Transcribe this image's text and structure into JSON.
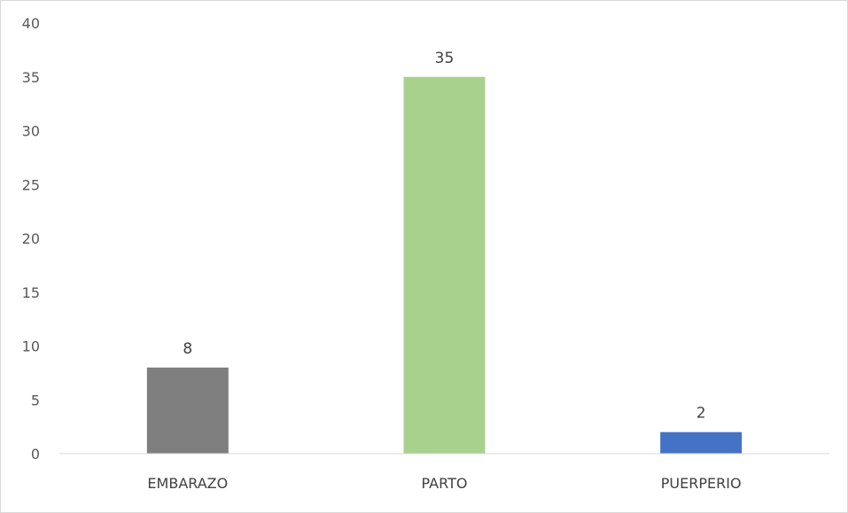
{
  "chart_data": {
    "type": "bar",
    "categories": [
      "EMBARAZO",
      "PARTO",
      "PUERPERIO"
    ],
    "values": [
      8,
      35,
      2
    ],
    "colors": [
      "#7f7f7f",
      "#a9d18e",
      "#4472c4"
    ],
    "ylim": [
      0,
      40
    ],
    "yticks": [
      0,
      5,
      10,
      15,
      20,
      25,
      30,
      35,
      40
    ],
    "data_labels": [
      "8",
      "35",
      "2"
    ],
    "grid": false,
    "legend": "none"
  }
}
